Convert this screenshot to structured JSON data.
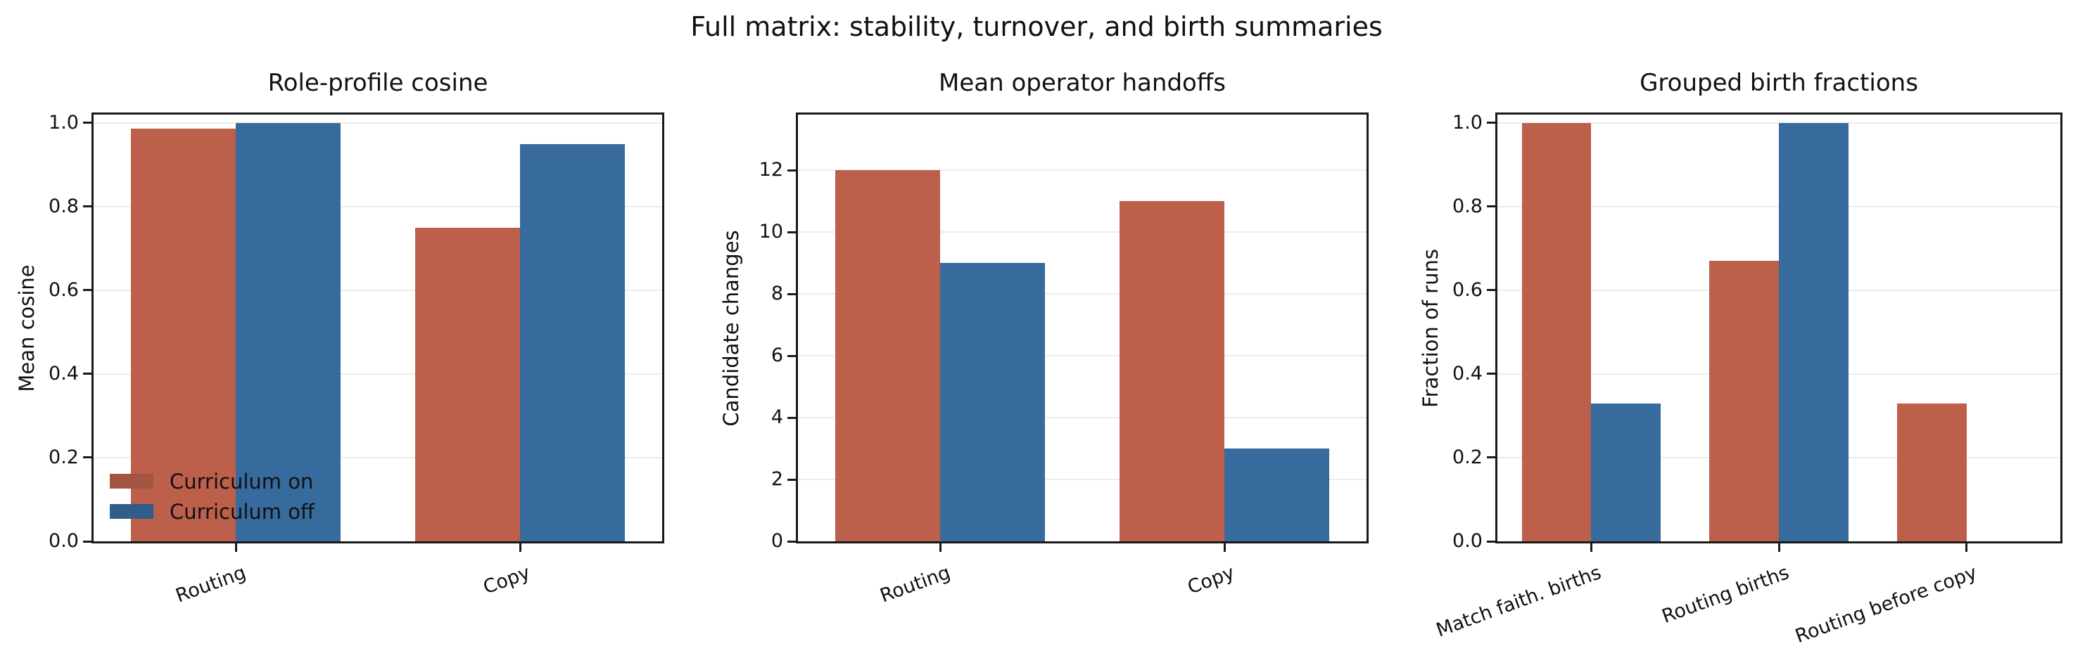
{
  "suptitle": "Full matrix: stability, turnover, and birth summaries",
  "colors": {
    "curriculum_on": "#bc5f4b",
    "curriculum_off": "#376a9d",
    "gridline": "#ececec",
    "spine": "#1a1a1a"
  },
  "chart_data": [
    {
      "type": "bar",
      "title": "Role-profile cosine",
      "xlabel": "",
      "ylabel": "Mean cosine",
      "categories": [
        "Routing",
        "Copy"
      ],
      "series": [
        {
          "name": "Curriculum on",
          "color": "#bc5f4b",
          "values": [
            0.987,
            0.75
          ]
        },
        {
          "name": "Curriculum off",
          "color": "#376a9d",
          "values": [
            1.0,
            0.95
          ]
        }
      ],
      "ylim": [
        0,
        1.02
      ],
      "yticks": [
        0.0,
        0.2,
        0.4,
        0.6,
        0.8,
        1.0
      ],
      "ytick_labels": [
        "0.0",
        "0.2",
        "0.4",
        "0.6",
        "0.8",
        "1.0"
      ],
      "grid": true,
      "x_tick_rotation_deg": 20,
      "legend": true,
      "legend_location": "lower left",
      "legend_entries": [
        "Curriculum on",
        "Curriculum off"
      ]
    },
    {
      "type": "bar",
      "title": "Mean operator handoffs",
      "xlabel": "",
      "ylabel": "Candidate changes",
      "categories": [
        "Routing",
        "Copy"
      ],
      "series": [
        {
          "name": "Curriculum on",
          "color": "#bc5f4b",
          "values": [
            12,
            11
          ]
        },
        {
          "name": "Curriculum off",
          "color": "#376a9d",
          "values": [
            9,
            3
          ]
        }
      ],
      "ylim": [
        0,
        13.8
      ],
      "yticks": [
        0,
        2,
        4,
        6,
        8,
        10,
        12
      ],
      "ytick_labels": [
        "0",
        "2",
        "4",
        "6",
        "8",
        "10",
        "12"
      ],
      "grid": true,
      "x_tick_rotation_deg": 20,
      "legend": false
    },
    {
      "type": "bar",
      "title": "Grouped birth fractions",
      "xlabel": "",
      "ylabel": "Fraction of runs",
      "categories": [
        "Match faith. births",
        "Routing births",
        "Routing before copy"
      ],
      "series": [
        {
          "name": "Curriculum on",
          "color": "#bc5f4b",
          "values": [
            1.0,
            0.67,
            0.33
          ]
        },
        {
          "name": "Curriculum off",
          "color": "#376a9d",
          "values": [
            0.33,
            1.0,
            0.0
          ]
        }
      ],
      "ylim": [
        0,
        1.02
      ],
      "yticks": [
        0.0,
        0.2,
        0.4,
        0.6,
        0.8,
        1.0
      ],
      "ytick_labels": [
        "0.0",
        "0.2",
        "0.4",
        "0.6",
        "0.8",
        "1.0"
      ],
      "grid": true,
      "x_tick_rotation_deg": 20,
      "legend": false
    }
  ]
}
